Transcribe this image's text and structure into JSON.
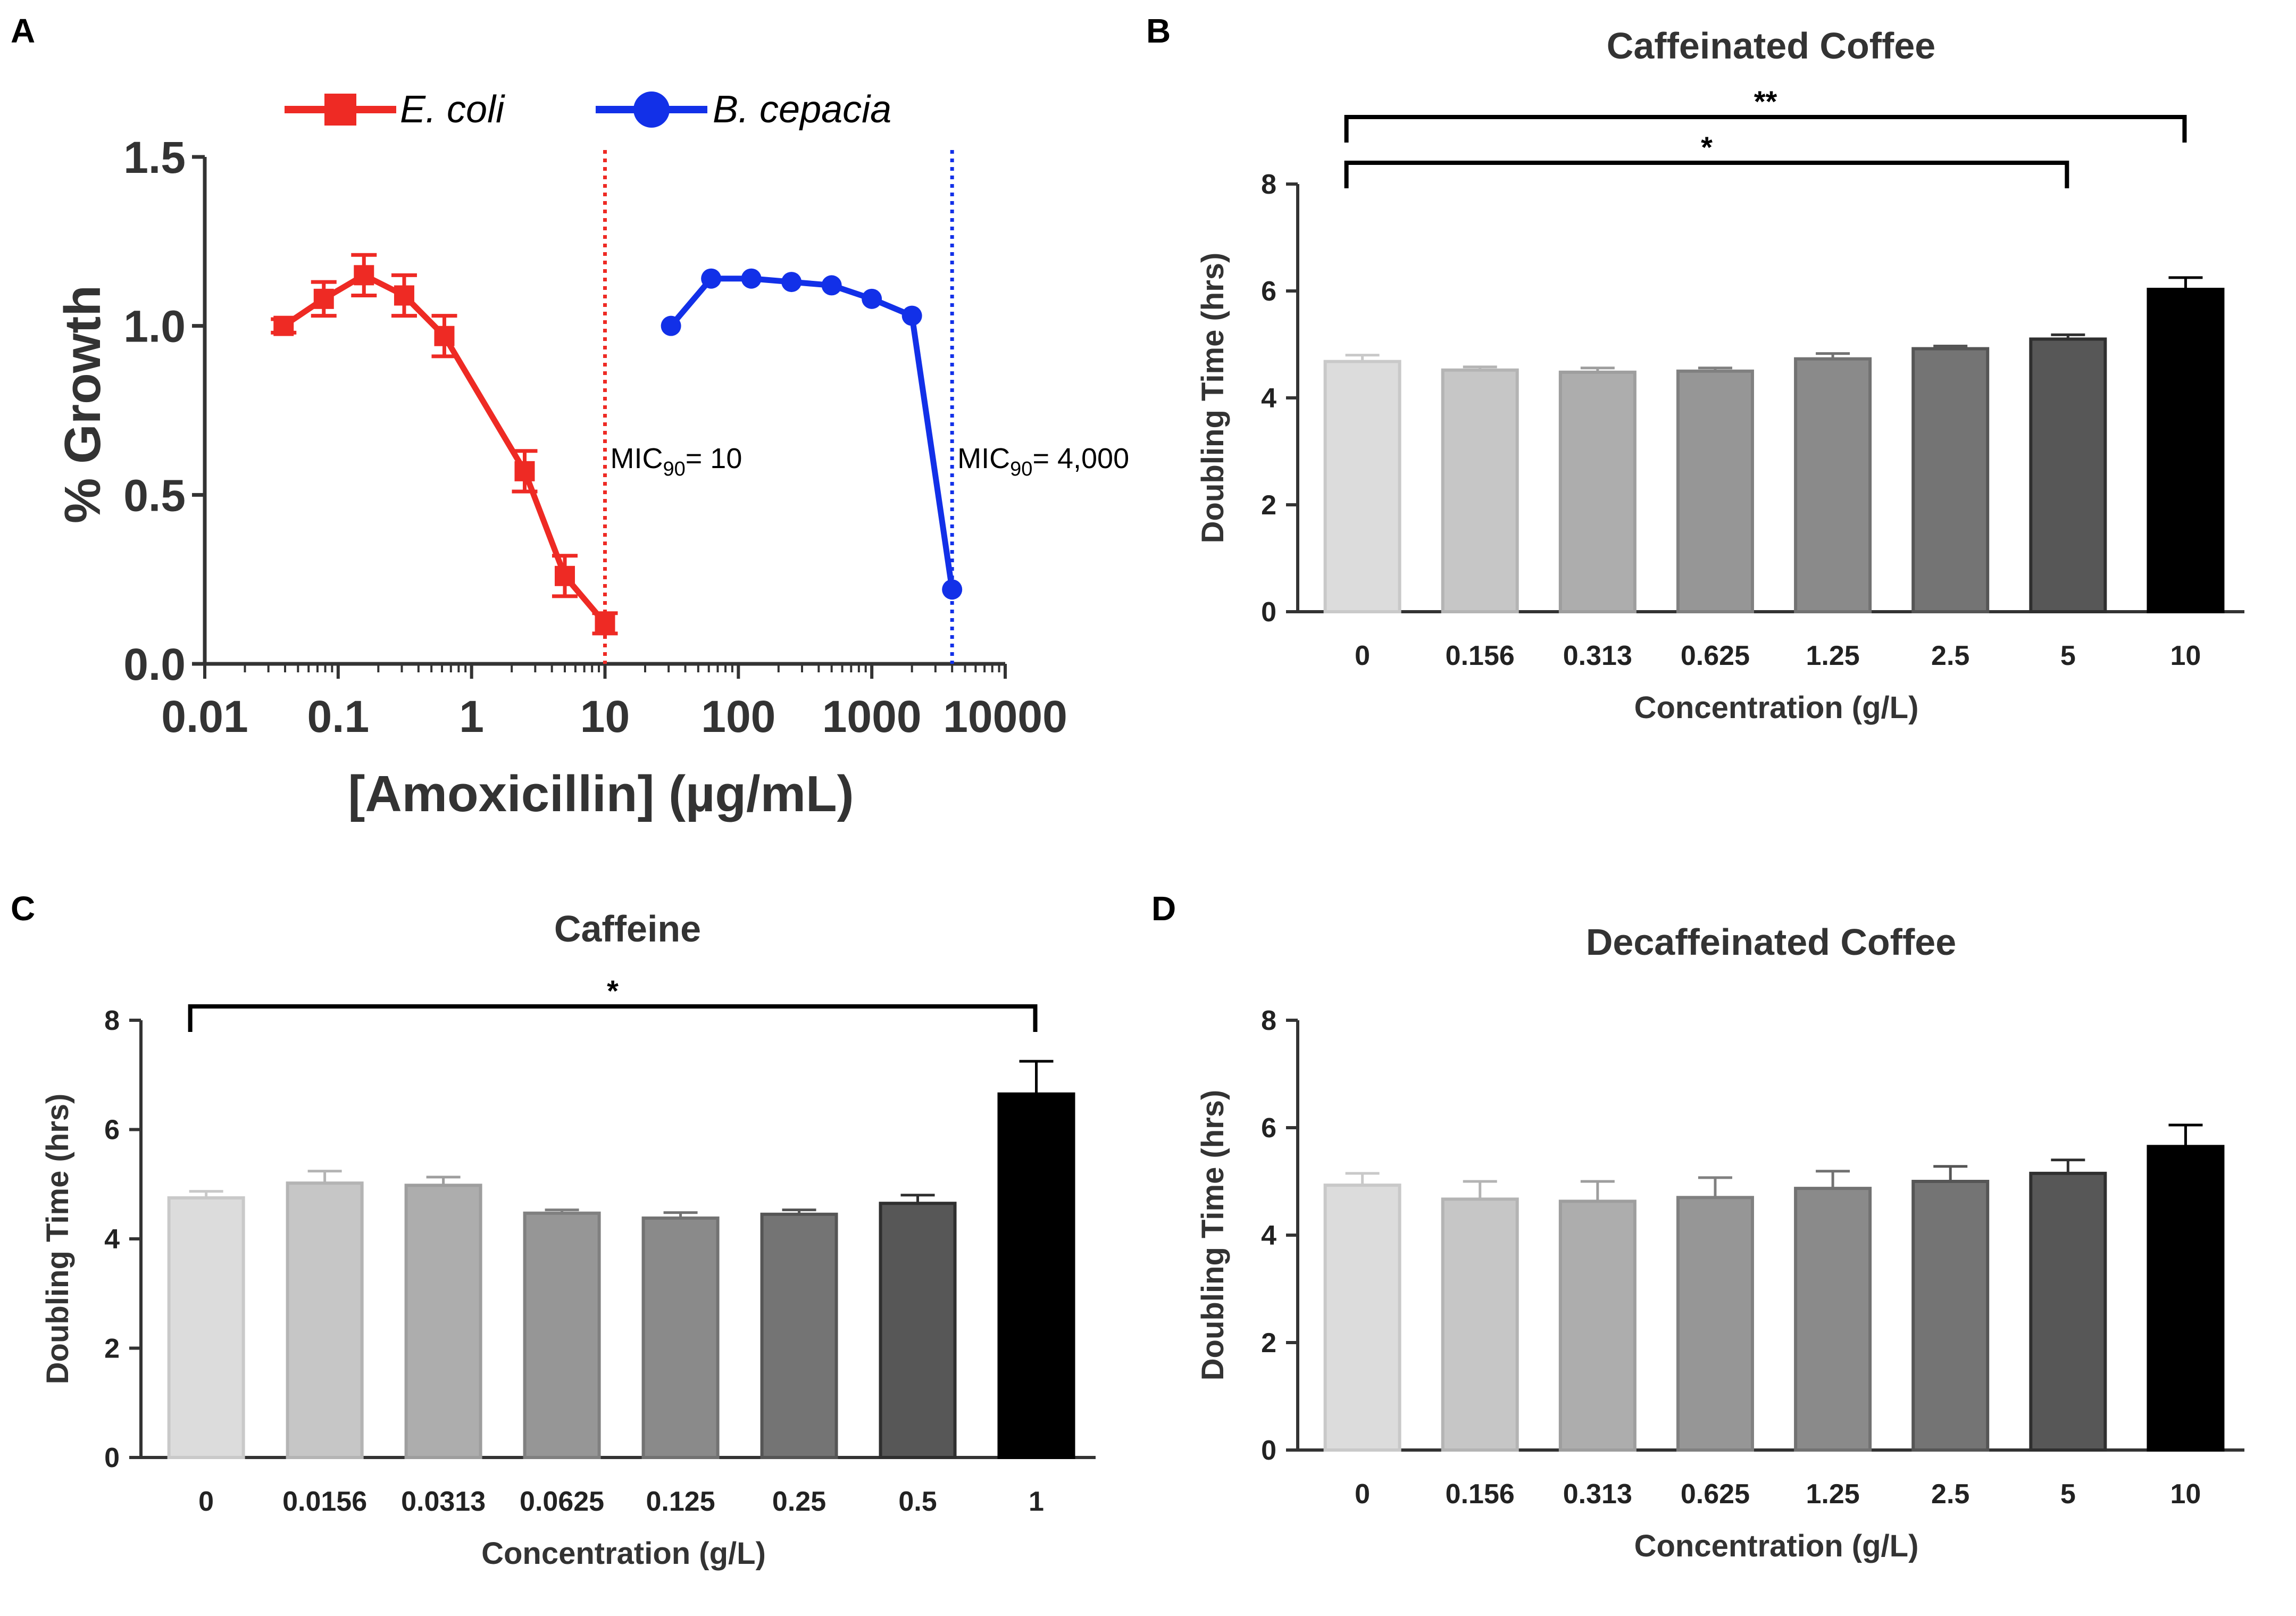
{
  "chart_data": [
    {
      "panel": "A",
      "type": "line",
      "title": "",
      "xscale": "log",
      "xlabel": "[Amoxicillin] (µg/mL)",
      "ylabel": "% Growth",
      "xlim": [
        0.01,
        10000
      ],
      "ylim": [
        0,
        1.5
      ],
      "xticks": [
        "0.01",
        "0.1",
        "1",
        "10",
        "100",
        "1000",
        "10000"
      ],
      "yticks": [
        "0.0",
        "0.5",
        "1.0",
        "1.5"
      ],
      "legend": "top",
      "series": [
        {
          "name": "E. coli",
          "color": "#ee2a24",
          "marker": "square",
          "x": [
            0.039,
            0.078,
            0.156,
            0.3125,
            0.625,
            2.5,
            5,
            10
          ],
          "y": [
            1.0,
            1.08,
            1.15,
            1.09,
            0.97,
            0.57,
            0.26,
            0.12
          ],
          "err": [
            0.02,
            0.05,
            0.06,
            0.06,
            0.06,
            0.06,
            0.06,
            0.03
          ]
        },
        {
          "name": "B. cepacia",
          "color": "#1230e8",
          "marker": "circle",
          "x": [
            31.25,
            62.5,
            125,
            250,
            500,
            1000,
            2000,
            4000
          ],
          "y": [
            1.0,
            1.14,
            1.14,
            1.13,
            1.12,
            1.08,
            1.03,
            0.22
          ],
          "err": [
            0,
            0,
            0,
            0,
            0,
            0,
            0,
            0
          ]
        }
      ],
      "vlines": [
        {
          "x": 10,
          "color": "#ee2a24",
          "label_pre": "MIC",
          "label_sub": "90",
          "label_post": "= 10"
        },
        {
          "x": 4000,
          "color": "#1230e8",
          "label_pre": "MIC",
          "label_sub": "90",
          "label_post": "= 4,000"
        }
      ]
    },
    {
      "panel": "B",
      "type": "bar",
      "title": "Caffeinated Coffee",
      "xlabel": "Concentration (g/L)",
      "ylabel": "Doubling Time (hrs)",
      "ylim": [
        0,
        8
      ],
      "yticks": [
        "0",
        "2",
        "4",
        "6",
        "8"
      ],
      "categories": [
        "0",
        "0.156",
        "0.313",
        "0.625",
        "1.25",
        "2.5",
        "5",
        "10"
      ],
      "values": [
        4.68,
        4.52,
        4.48,
        4.5,
        4.73,
        4.92,
        5.1,
        6.03
      ],
      "err": [
        0.12,
        0.06,
        0.08,
        0.06,
        0.1,
        0.05,
        0.08,
        0.22
      ],
      "significance": [
        {
          "from": 0,
          "to": 7,
          "label": "**"
        },
        {
          "from": 0,
          "to": 6,
          "label": "*"
        }
      ]
    },
    {
      "panel": "C",
      "type": "bar",
      "title": "Caffeine",
      "xlabel": "Concentration (g/L)",
      "ylabel": "Doubling Time (hrs)",
      "ylim": [
        0,
        8
      ],
      "yticks": [
        "0",
        "2",
        "4",
        "6",
        "8"
      ],
      "categories": [
        "0",
        "0.0156",
        "0.0313",
        "0.0625",
        "0.125",
        "0.25",
        "0.5",
        "1"
      ],
      "values": [
        4.75,
        5.02,
        4.98,
        4.47,
        4.38,
        4.45,
        4.65,
        6.65
      ],
      "err": [
        0.12,
        0.22,
        0.15,
        0.06,
        0.1,
        0.08,
        0.15,
        0.6
      ],
      "significance": [
        {
          "from": 0,
          "to": 7,
          "label": "*"
        }
      ]
    },
    {
      "panel": "D",
      "type": "bar",
      "title": "Decaffeinated Coffee",
      "xlabel": "Concentration (g/L)",
      "ylabel": "Doubling Time (hrs)",
      "ylim": [
        0,
        8
      ],
      "yticks": [
        "0",
        "2",
        "4",
        "6",
        "8"
      ],
      "categories": [
        "0",
        "0.156",
        "0.313",
        "0.625",
        "1.25",
        "2.5",
        "5",
        "10"
      ],
      "values": [
        4.93,
        4.67,
        4.63,
        4.7,
        4.87,
        5.0,
        5.15,
        5.65
      ],
      "err": [
        0.22,
        0.33,
        0.37,
        0.37,
        0.32,
        0.28,
        0.25,
        0.4
      ],
      "significance": []
    }
  ],
  "bar_colors": [
    "#dcdcdc",
    "#c6c6c6",
    "#adadad",
    "#969696",
    "#8a8a8a",
    "#747474",
    "#575757",
    "#000000"
  ],
  "bar_edge_colors": [
    "#c9c9c9",
    "#b4b4b4",
    "#9e9e9e",
    "#808080",
    "#727272",
    "#555555",
    "#2f2f2f",
    "#000000"
  ]
}
